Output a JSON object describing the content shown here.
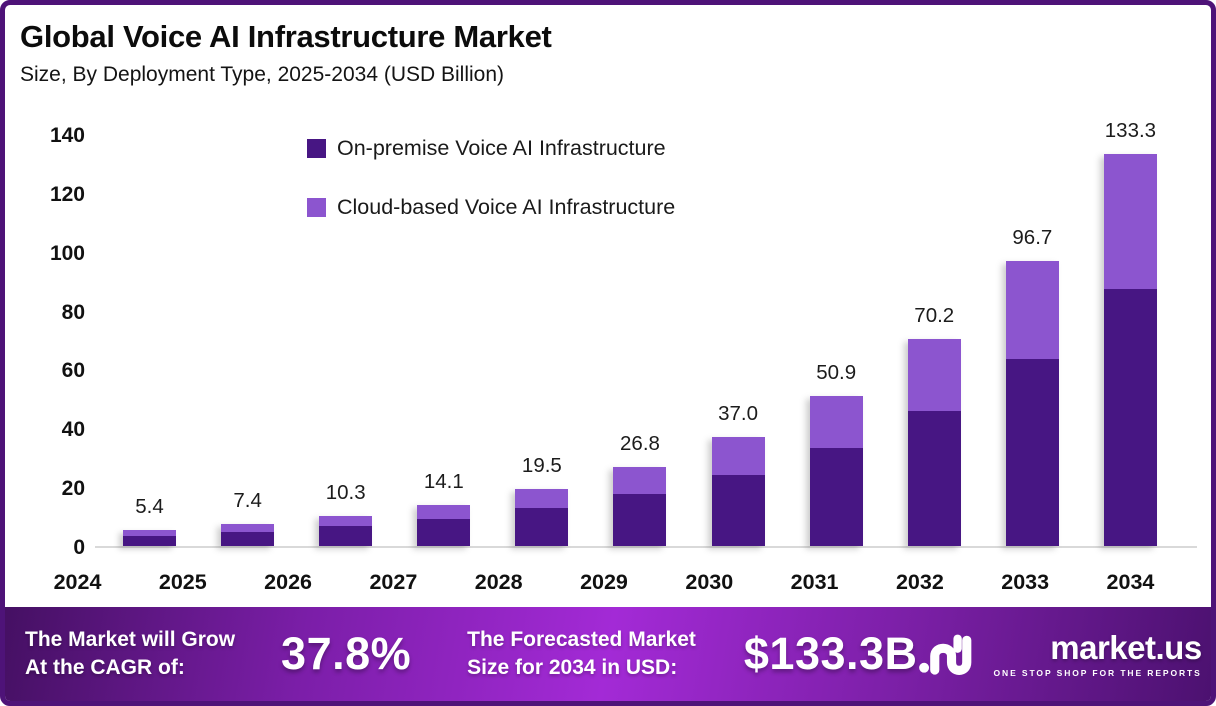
{
  "header": {
    "title": "Global Voice AI Infrastructure Market",
    "subtitle": "Size, By Deployment Type, 2025-2034 (USD Billion)"
  },
  "chart_data": {
    "type": "bar",
    "stacked": true,
    "title": "Global Voice AI Infrastructure Market",
    "subtitle": "Size, By Deployment Type, 2025-2034 (USD Billion)",
    "categories": [
      "2024",
      "2025",
      "2026",
      "2027",
      "2028",
      "2029",
      "2030",
      "2031",
      "2032",
      "2033",
      "2034"
    ],
    "totals": [
      5.4,
      7.4,
      10.3,
      14.1,
      19.5,
      26.8,
      37.0,
      50.9,
      70.2,
      96.7,
      133.3
    ],
    "total_labels": [
      "5.4",
      "7.4",
      "10.3",
      "14.1",
      "19.5",
      "26.8",
      "37.0",
      "50.9",
      "70.2",
      "96.7",
      "133.3"
    ],
    "series": [
      {
        "name": "On-premise Voice AI Infrastructure",
        "color": "#471683",
        "values": [
          3.5,
          4.8,
          6.7,
          9.2,
          12.8,
          17.6,
          24.2,
          33.4,
          46.0,
          63.5,
          87.5
        ]
      },
      {
        "name": "Cloud-based Voice AI Infrastructure",
        "color": "#8c55cf",
        "values": [
          1.9,
          2.6,
          3.6,
          4.9,
          6.7,
          9.2,
          12.8,
          17.5,
          24.2,
          33.2,
          45.8
        ]
      }
    ],
    "ylabel": "",
    "xlabel": "",
    "ylim": [
      0,
      140
    ],
    "yticks": [
      0,
      20,
      40,
      60,
      80,
      100,
      120,
      140
    ],
    "grid": false,
    "legend_position": "top-center",
    "note": "series split values estimated from bar segment heights; totals are labeled on chart"
  },
  "banner": {
    "cagr_label_line1": "The Market will Grow",
    "cagr_label_line2": "At the CAGR of:",
    "cagr_value": "37.8%",
    "forecast_label_line1": "The Forecasted Market",
    "forecast_label_line2": "Size for 2034 in USD:",
    "forecast_value": "$133.3B",
    "logo_text": "market.us",
    "logo_tagline": "ONE STOP SHOP FOR THE REPORTS",
    "gradient": [
      "#451063",
      "#7b1ea8",
      "#a32ad6",
      "#7a1fa5",
      "#4c1170"
    ]
  },
  "colors": {
    "page_border": "#4e1378",
    "bar_dark": "#471683",
    "bar_light": "#8c55cf",
    "axis_line": "#d9d9d9",
    "text": "#111111",
    "banner_text": "#ffffff"
  }
}
